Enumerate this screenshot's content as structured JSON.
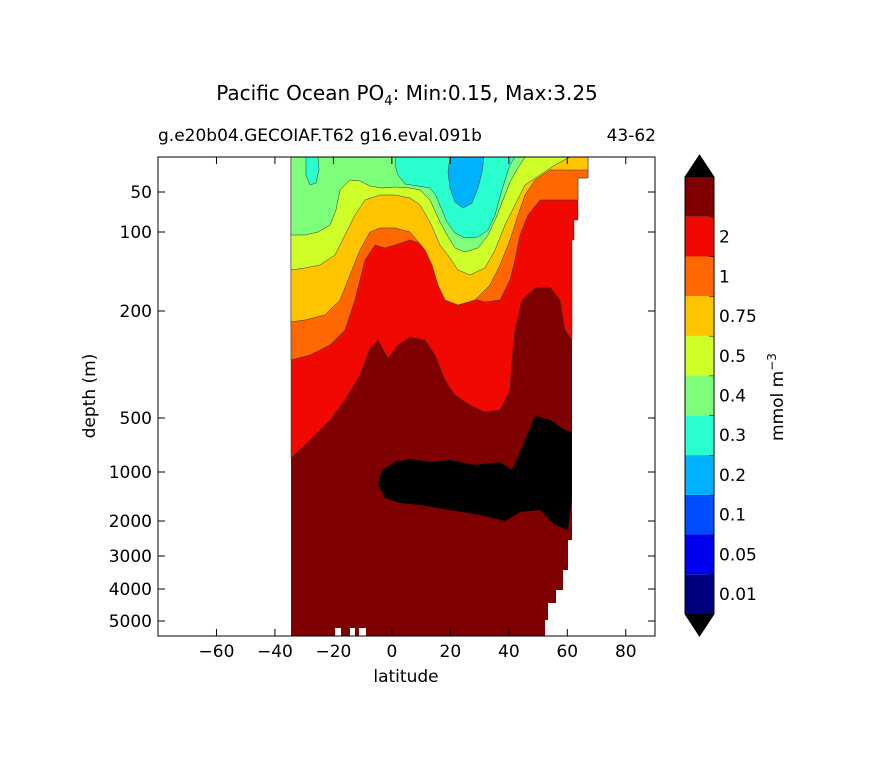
{
  "chart_data": {
    "type": "contour",
    "title": {
      "prefix": "Pacific Ocean PO",
      "subscript": "4",
      "suffix": ": Min:0.15, Max:3.25"
    },
    "subtitle_left": "g.e20b04.GECOIAF.T62 g16.eval.091b",
    "subtitle_right": "43-62",
    "xlabel": "latitude",
    "ylabel": "depth (m)",
    "xlim": [
      -80,
      90
    ],
    "ylim": [
      5500,
      25
    ],
    "y_scale": "nonlinear (depth)",
    "x_ticks": [
      {
        "value": -60,
        "label": "−60"
      },
      {
        "value": -40,
        "label": "−40"
      },
      {
        "value": -20,
        "label": "−20"
      },
      {
        "value": 0,
        "label": "0"
      },
      {
        "value": 20,
        "label": "20"
      },
      {
        "value": 40,
        "label": "40"
      },
      {
        "value": 60,
        "label": "60"
      },
      {
        "value": 80,
        "label": "80"
      }
    ],
    "y_ticks": [
      {
        "value": 50,
        "label": "50"
      },
      {
        "value": 100,
        "label": "100"
      },
      {
        "value": 200,
        "label": "200"
      },
      {
        "value": 500,
        "label": "500"
      },
      {
        "value": 1000,
        "label": "1000"
      },
      {
        "value": 2000,
        "label": "2000"
      },
      {
        "value": 3000,
        "label": "3000"
      },
      {
        "value": 4000,
        "label": "4000"
      },
      {
        "value": 5000,
        "label": "5000"
      }
    ],
    "colorbar": {
      "label_base": "mmol m",
      "label_exponent": "−3",
      "extend": "both",
      "under_color": "#000000",
      "over_color": "#000000",
      "levels": [
        {
          "color": "#00007f",
          "label": "0.01"
        },
        {
          "color": "#0000f1",
          "label": "0.05"
        },
        {
          "color": "#004dff",
          "label": "0.1"
        },
        {
          "color": "#00b1ff",
          "label": "0.2"
        },
        {
          "color": "#29ffce",
          "label": "0.3"
        },
        {
          "color": "#7dff7a",
          "label": "0.4"
        },
        {
          "color": "#ceff29",
          "label": "0.5"
        },
        {
          "color": "#ffc400",
          "label": "0.75"
        },
        {
          "color": "#ff6800",
          "label": "1"
        },
        {
          "color": "#f10800",
          "label": "2"
        },
        {
          "color": "#7f0000",
          "label": ""
        }
      ]
    },
    "field_colors": {
      "deep": "#7f0000",
      "above_max": "#000000",
      "band_2": "#f10800",
      "band_1": "#ff6800",
      "band_075": "#ffc400",
      "band_05": "#ceff29",
      "band_04": "#7dff7a",
      "band_03": "#29ffce",
      "band_02": "#00b1ff"
    }
  }
}
